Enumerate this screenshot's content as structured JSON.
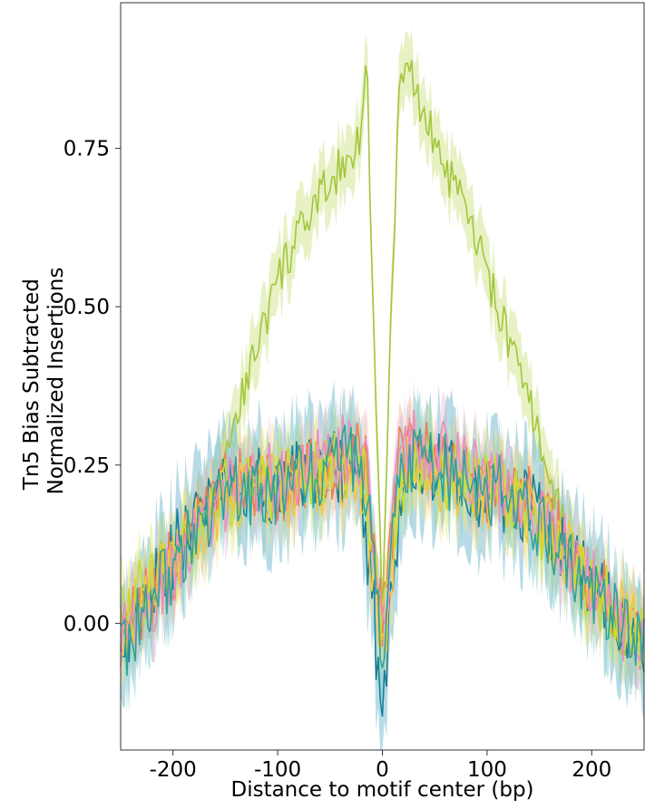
{
  "chart_data": {
    "type": "line",
    "title": "",
    "xlabel": "Distance to motif center (bp)",
    "ylabel_lines": [
      "Tn5 Bias Subtracted",
      "Normalized Insertions"
    ],
    "xlim": [
      -250,
      250
    ],
    "ylim": [
      -0.2,
      0.98
    ],
    "x_ticks": [
      {
        "value": -200,
        "label": "-200"
      },
      {
        "value": -100,
        "label": "-100"
      },
      {
        "value": 0,
        "label": "0"
      },
      {
        "value": 100,
        "label": "100"
      },
      {
        "value": 200,
        "label": "200"
      }
    ],
    "y_ticks": [
      {
        "value": 0.0,
        "label": "0.00"
      },
      {
        "value": 0.25,
        "label": "0.25"
      },
      {
        "value": 0.5,
        "label": "0.50"
      },
      {
        "value": 0.75,
        "label": "0.75"
      }
    ],
    "grid": false,
    "legend": "none",
    "series": [
      {
        "color": "#a3c63d",
        "band_color": "#c9e07a",
        "x": [
          -250,
          -240,
          -230,
          -220,
          -210,
          -200,
          -190,
          -180,
          -170,
          -160,
          -150,
          -140,
          -130,
          -120,
          -110,
          -100,
          -90,
          -80,
          -70,
          -60,
          -50,
          -40,
          -30,
          -20,
          -15,
          -10,
          -5,
          0,
          5,
          10,
          15,
          20,
          25,
          30,
          40,
          50,
          60,
          70,
          80,
          90,
          100,
          110,
          120,
          130,
          140,
          150,
          160,
          170,
          180,
          190,
          200,
          210,
          220,
          230,
          240,
          250
        ],
        "y": [
          0.0,
          0.02,
          0.04,
          0.05,
          0.07,
          0.09,
          0.11,
          0.14,
          0.18,
          0.22,
          0.28,
          0.33,
          0.38,
          0.44,
          0.49,
          0.54,
          0.58,
          0.61,
          0.64,
          0.67,
          0.7,
          0.72,
          0.74,
          0.78,
          0.9,
          0.55,
          0.3,
          0.0,
          0.3,
          0.55,
          0.8,
          0.88,
          0.9,
          0.85,
          0.8,
          0.76,
          0.72,
          0.68,
          0.65,
          0.6,
          0.55,
          0.5,
          0.45,
          0.4,
          0.35,
          0.29,
          0.23,
          0.17,
          0.12,
          0.08,
          0.05,
          0.03,
          0.0,
          -0.02,
          -0.03,
          -0.04
        ],
        "band": 0.05
      },
      {
        "color": "#1a7f9a",
        "band_color": "#5fb0c8",
        "x": [
          -250,
          -240,
          -230,
          -220,
          -210,
          -200,
          -190,
          -180,
          -170,
          -160,
          -150,
          -140,
          -130,
          -120,
          -110,
          -100,
          -90,
          -80,
          -70,
          -60,
          -50,
          -40,
          -30,
          -20,
          -10,
          -5,
          0,
          5,
          10,
          20,
          30,
          40,
          50,
          60,
          70,
          80,
          90,
          100,
          110,
          120,
          130,
          140,
          150,
          160,
          170,
          180,
          190,
          200,
          210,
          220,
          230,
          240,
          250
        ],
        "y": [
          -0.05,
          -0.02,
          0.02,
          0.05,
          0.08,
          0.11,
          0.14,
          0.17,
          0.2,
          0.22,
          0.23,
          0.22,
          0.21,
          0.22,
          0.22,
          0.21,
          0.22,
          0.23,
          0.24,
          0.24,
          0.25,
          0.25,
          0.25,
          0.2,
          0.05,
          -0.05,
          -0.18,
          -0.05,
          0.05,
          0.22,
          0.27,
          0.26,
          0.25,
          0.24,
          0.23,
          0.22,
          0.21,
          0.21,
          0.2,
          0.2,
          0.19,
          0.18,
          0.17,
          0.15,
          0.13,
          0.1,
          0.08,
          0.06,
          0.04,
          0.02,
          0.0,
          -0.02,
          -0.04
        ],
        "band": 0.08
      },
      {
        "color": "#f07d5a",
        "band_color": "#f4b89a",
        "x": [
          -250,
          -230,
          -210,
          -190,
          -170,
          -150,
          -130,
          -110,
          -90,
          -70,
          -50,
          -30,
          -15,
          -5,
          0,
          5,
          15,
          30,
          50,
          70,
          90,
          110,
          130,
          150,
          170,
          190,
          210,
          230,
          250
        ],
        "y": [
          -0.02,
          0.03,
          0.07,
          0.12,
          0.17,
          0.21,
          0.22,
          0.22,
          0.22,
          0.24,
          0.25,
          0.27,
          0.24,
          0.05,
          0.0,
          0.05,
          0.25,
          0.28,
          0.26,
          0.24,
          0.22,
          0.21,
          0.2,
          0.18,
          0.14,
          0.09,
          0.05,
          0.0,
          -0.03
        ],
        "band": 0.04
      },
      {
        "color": "#f5c542",
        "band_color": "#f9dd8a",
        "x": [
          -250,
          -230,
          -210,
          -190,
          -170,
          -150,
          -130,
          -110,
          -90,
          -70,
          -50,
          -30,
          -15,
          -5,
          0,
          5,
          15,
          30,
          50,
          70,
          90,
          110,
          130,
          150,
          170,
          190,
          210,
          230,
          250
        ],
        "y": [
          0.0,
          0.04,
          0.08,
          0.12,
          0.16,
          0.2,
          0.21,
          0.21,
          0.21,
          0.22,
          0.23,
          0.24,
          0.2,
          0.0,
          -0.05,
          0.0,
          0.2,
          0.26,
          0.24,
          0.22,
          0.21,
          0.2,
          0.19,
          0.16,
          0.12,
          0.08,
          0.04,
          0.01,
          -0.02
        ],
        "band": 0.05
      },
      {
        "color": "#c8dc30",
        "band_color": "#e2ee7a",
        "x": [
          -250,
          -230,
          -210,
          -190,
          -170,
          -150,
          -130,
          -110,
          -90,
          -70,
          -50,
          -30,
          -15,
          -5,
          0,
          5,
          15,
          30,
          50,
          70,
          90,
          110,
          130,
          150,
          170,
          190,
          210,
          230,
          250
        ],
        "y": [
          0.02,
          0.05,
          0.09,
          0.13,
          0.17,
          0.2,
          0.22,
          0.22,
          0.22,
          0.23,
          0.24,
          0.25,
          0.22,
          0.04,
          -0.02,
          0.04,
          0.22,
          0.26,
          0.25,
          0.23,
          0.22,
          0.21,
          0.19,
          0.16,
          0.12,
          0.08,
          0.04,
          0.0,
          -0.03
        ],
        "band": 0.05
      },
      {
        "color": "#e98fbf",
        "band_color": "#f3c3dd",
        "x": [
          -250,
          -230,
          -210,
          -190,
          -170,
          -150,
          -130,
          -110,
          -90,
          -70,
          -50,
          -30,
          -15,
          -5,
          0,
          5,
          15,
          30,
          50,
          70,
          90,
          110,
          130,
          150,
          170,
          190,
          210,
          230,
          250
        ],
        "y": [
          -0.03,
          0.02,
          0.06,
          0.11,
          0.16,
          0.2,
          0.22,
          0.23,
          0.23,
          0.24,
          0.26,
          0.28,
          0.25,
          0.05,
          -0.02,
          0.05,
          0.26,
          0.29,
          0.27,
          0.25,
          0.23,
          0.22,
          0.2,
          0.17,
          0.13,
          0.08,
          0.04,
          0.0,
          -0.04
        ],
        "band": 0.05
      },
      {
        "color": "#2fa39a",
        "band_color": "#7fcfc6",
        "x": [
          -250,
          -230,
          -210,
          -190,
          -170,
          -150,
          -130,
          -110,
          -90,
          -70,
          -50,
          -30,
          -15,
          -5,
          0,
          5,
          15,
          30,
          50,
          70,
          90,
          110,
          130,
          150,
          170,
          190,
          210,
          230,
          250
        ],
        "y": [
          -0.04,
          0.01,
          0.06,
          0.11,
          0.16,
          0.2,
          0.21,
          0.21,
          0.22,
          0.23,
          0.24,
          0.26,
          0.22,
          0.02,
          -0.06,
          0.02,
          0.22,
          0.27,
          0.25,
          0.23,
          0.22,
          0.21,
          0.19,
          0.16,
          0.12,
          0.07,
          0.03,
          -0.01,
          -0.05
        ],
        "band": 0.06
      }
    ]
  }
}
